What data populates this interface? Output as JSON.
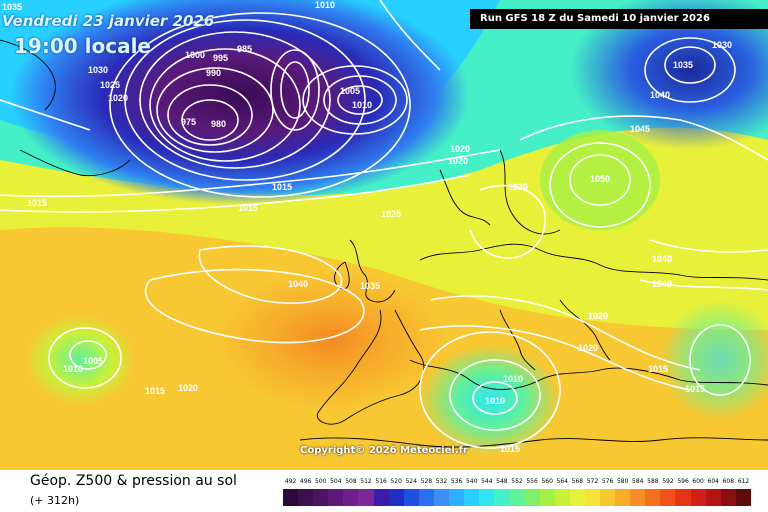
{
  "header": {
    "valid_time": "Vendredi 23 janvier 2026",
    "local_time": "19:00 locale",
    "run_info": "Run GFS 18 Z du Samedi 10 janvier 2026"
  },
  "footer": {
    "title": "Géop. Z500 & pression au sol",
    "forecast_offset": "(+ 312h)"
  },
  "copyright": "Copyright© 2026 Meteociel.fr",
  "legend": {
    "values": [
      "492",
      "496",
      "500",
      "504",
      "508",
      "512",
      "516",
      "520",
      "524",
      "528",
      "532",
      "536",
      "540",
      "544",
      "548",
      "552",
      "556",
      "560",
      "564",
      "568",
      "572",
      "576",
      "580",
      "584",
      "588",
      "592",
      "596",
      "600",
      "604",
      "608",
      "612"
    ],
    "colors": [
      "#2a0a3a",
      "#3b0f4e",
      "#4b1462",
      "#5c1a78",
      "#6e1f8c",
      "#7a2899",
      "#3b1ca8",
      "#1f2ec4",
      "#1e4fe0",
      "#2a6ff2",
      "#3b8ff7",
      "#2fb0ff",
      "#27d0ff",
      "#2ee6ee",
      "#45efc7",
      "#62f09a",
      "#80f06a",
      "#a6f044",
      "#c8f03a",
      "#e8f03a",
      "#f7e23a",
      "#f8c833",
      "#f7ad2b",
      "#f68f25",
      "#f4701f",
      "#f0511a",
      "#e63418",
      "#d41f16",
      "#b31414",
      "#8a0f12",
      "#5c0a0c"
    ]
  },
  "map": {
    "isobar_labels": [
      "1035",
      "1010",
      "1030",
      "1025",
      "1020",
      "1000",
      "995",
      "985",
      "990",
      "975",
      "980",
      "1015",
      "1040",
      "1045",
      "1050",
      "1005",
      "1010",
      "1015",
      "1020",
      "1025",
      "1030",
      "1035",
      "1040",
      "1030",
      "1020",
      "1020",
      "1015",
      "1015",
      "1010",
      "1010",
      "1015",
      "1005",
      "1010",
      "1035",
      "1040",
      "1040",
      "1020",
      "1020",
      "1015",
      "1015"
    ]
  }
}
